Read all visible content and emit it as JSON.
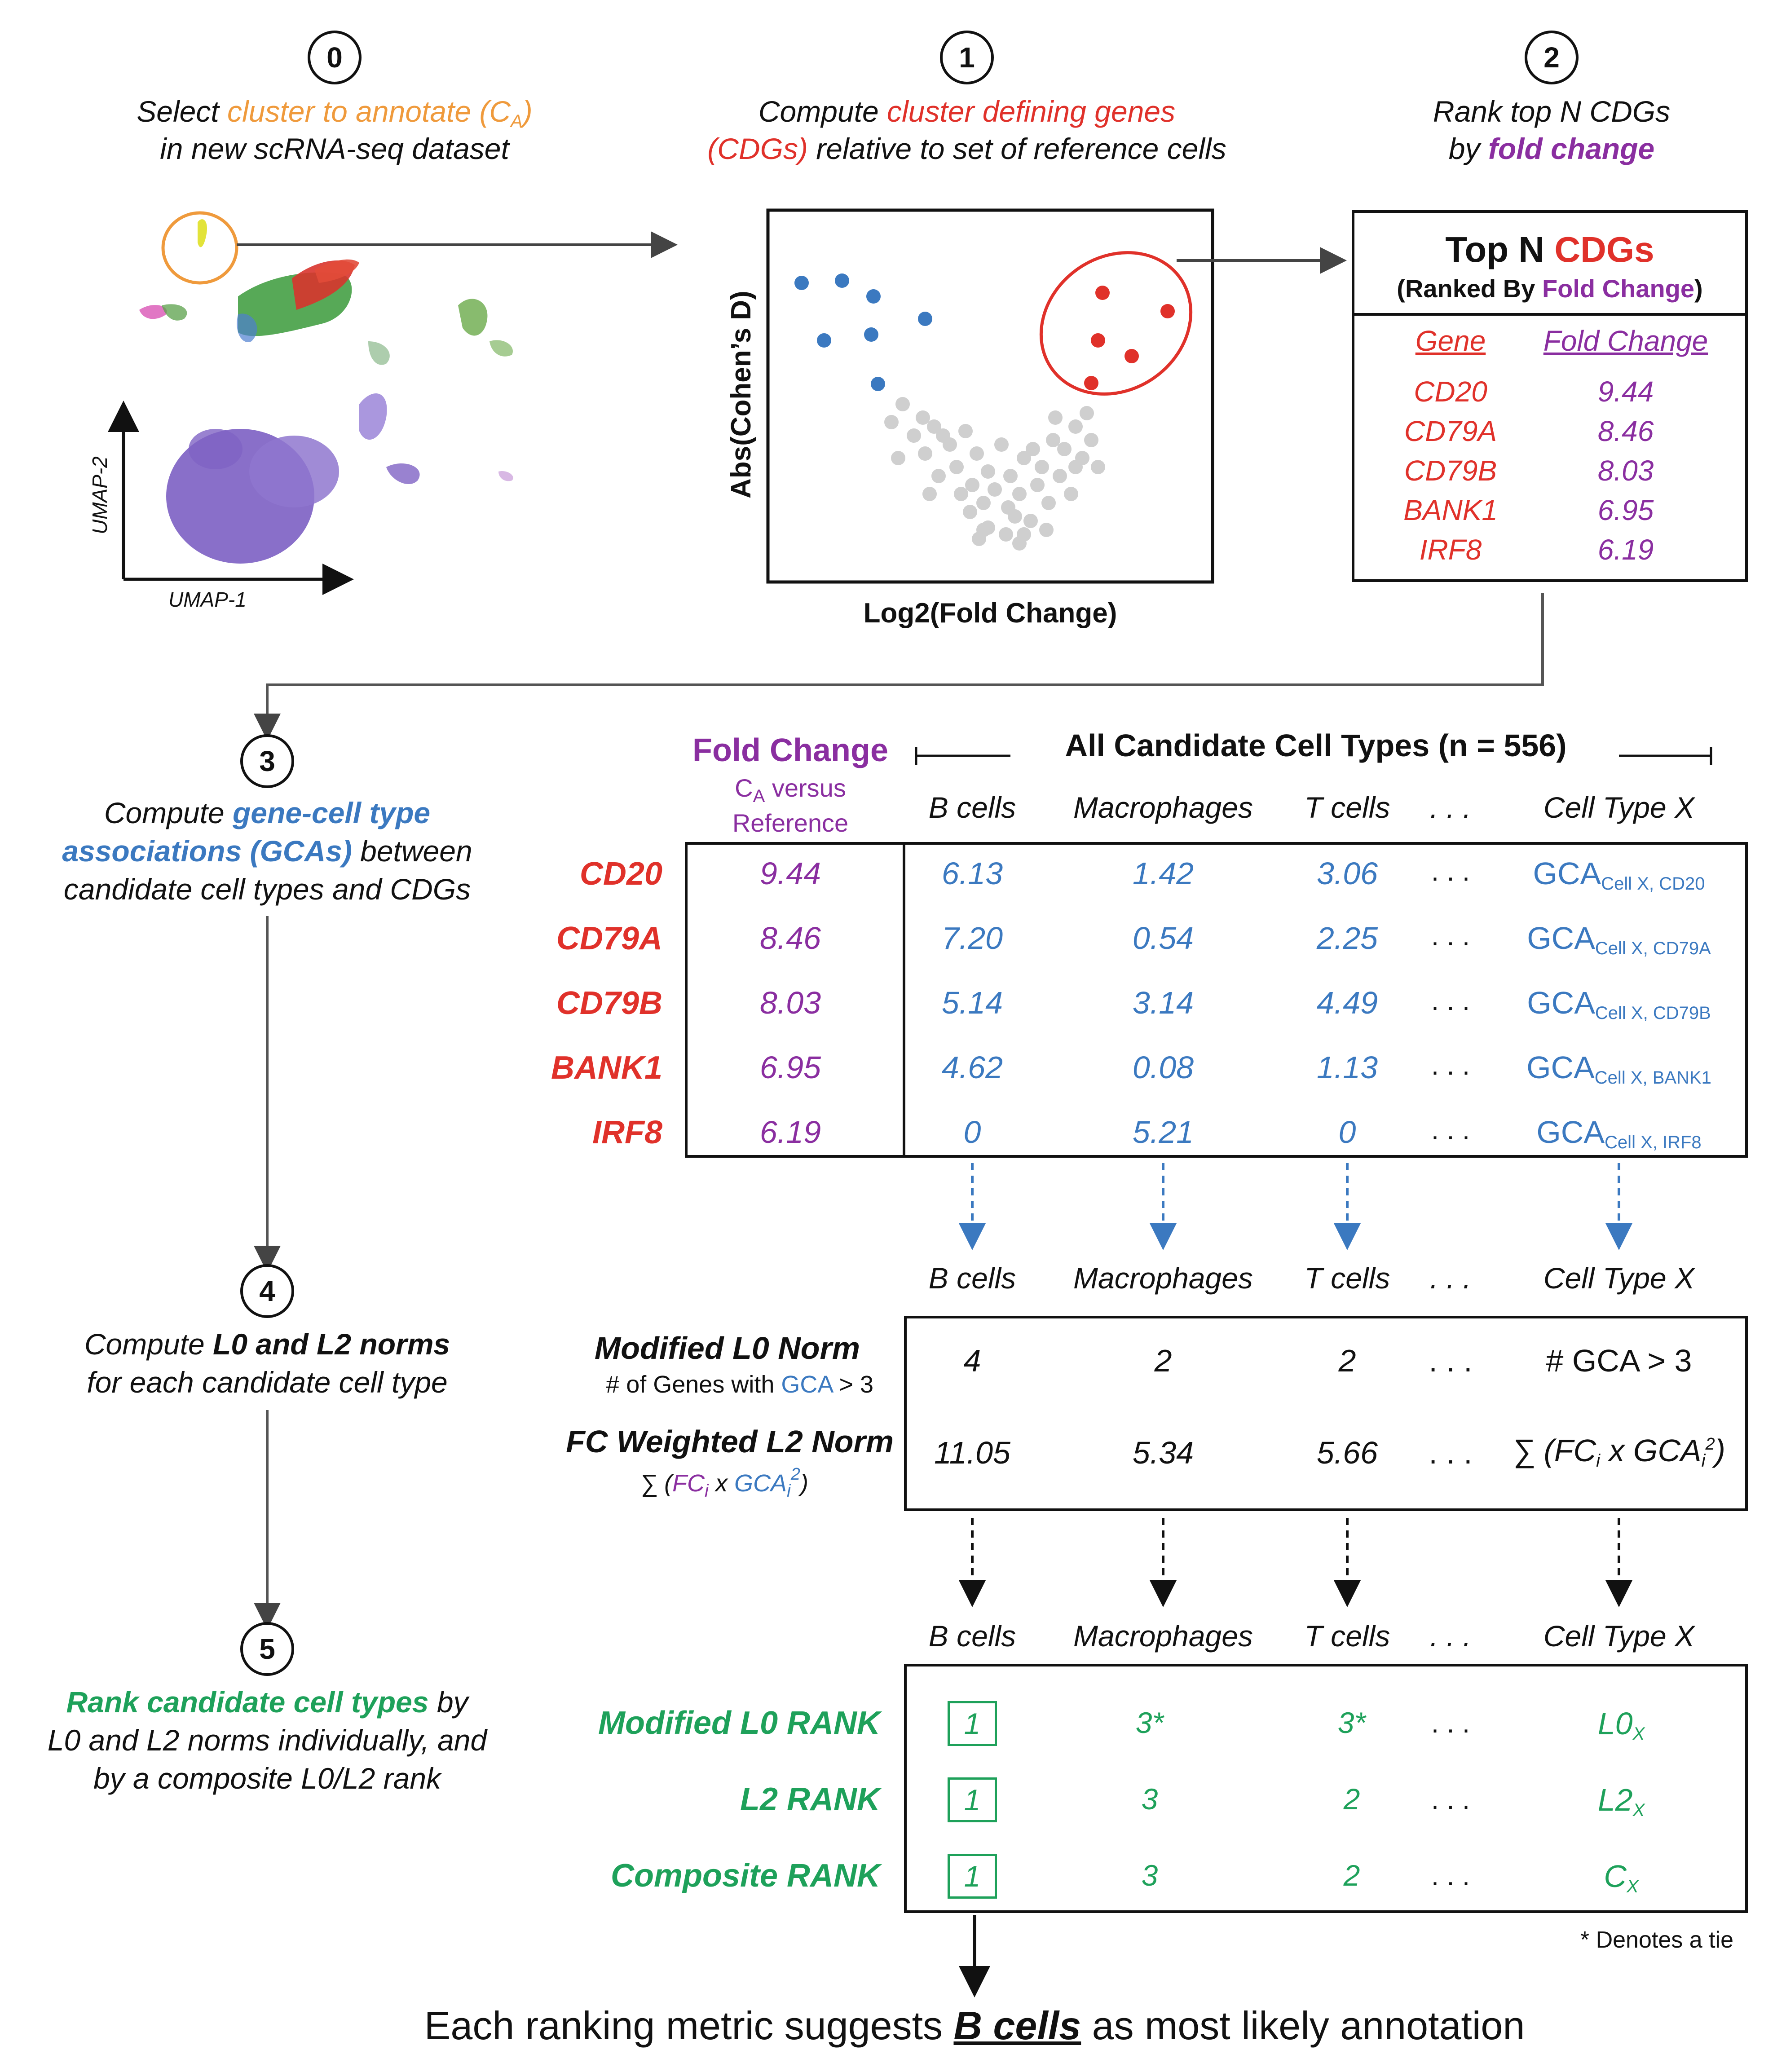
{
  "steps": {
    "s0": {
      "num": "0",
      "line1_pre": "Select ",
      "line1_hl": "cluster to annotate (C",
      "line1_sub": "A",
      "line1_hl_end": ")",
      "line2": "in new scRNA-seq dataset"
    },
    "s1": {
      "num": "1",
      "line1_pre": "Compute ",
      "line1_hl": "cluster defining genes",
      "line2_hl": "(CDGs)",
      "line2_post": " relative to set of reference cells"
    },
    "s2": {
      "num": "2",
      "line1": "Rank top N CDGs",
      "line2_pre": "by ",
      "line2_hl": "fold change"
    },
    "s3": {
      "num": "3",
      "line1_pre": "Compute ",
      "line1_hl": "gene-cell type",
      "line2_hl": "associations (GCAs)",
      "line2_post": " between",
      "line3": "candidate cell types and CDGs"
    },
    "s4": {
      "num": "4",
      "line1_pre": "Compute ",
      "line1_hl": "L0 and L2 norms",
      "line2": "for each candidate cell type"
    },
    "s5": {
      "num": "5",
      "line1_hl": "Rank candidate cell types",
      "line1_post": " by",
      "line2": "L0 and L2 norms individually, and",
      "line3": "by a composite L0/L2 rank"
    }
  },
  "umap": {
    "xlabel": "UMAP-1",
    "ylabel": "UMAP-2"
  },
  "volcano": {
    "xlabel": "Log2(Fold Change)",
    "ylabel": "Abs(Cohen’s D)"
  },
  "topn": {
    "title_pre": "Top N ",
    "title_hl": "CDGs",
    "subtitle_pre": "(Ranked By ",
    "subtitle_hl": "Fold Change",
    "subtitle_post": ")",
    "col_gene": "Gene",
    "col_fc": "Fold Change",
    "rows": [
      {
        "gene": "CD20",
        "fc": "9.44"
      },
      {
        "gene": "CD79A",
        "fc": "8.46"
      },
      {
        "gene": "CD79B",
        "fc": "8.03"
      },
      {
        "gene": "BANK1",
        "fc": "6.95"
      },
      {
        "gene": "IRF8",
        "fc": "6.19"
      }
    ]
  },
  "gca": {
    "fc_header": "Fold Change",
    "fc_sub_c": "C",
    "fc_sub_a": "A",
    "fc_sub_rest": " versus",
    "fc_sub2": "Reference",
    "all_header": "All Candidate Cell Types (n = 556)",
    "cols": [
      "B cells",
      "Macrophages",
      "T cells",
      ". . .",
      "Cell Type X"
    ],
    "rows": [
      {
        "gene": "CD20",
        "fc": "9.44",
        "b": "6.13",
        "m": "1.42",
        "t": "3.06",
        "dots": ". . .",
        "x": "GCA",
        "xsub": "Cell X, CD20"
      },
      {
        "gene": "CD79A",
        "fc": "8.46",
        "b": "7.20",
        "m": "0.54",
        "t": "2.25",
        "dots": ". . .",
        "x": "GCA",
        "xsub": "Cell X, CD79A"
      },
      {
        "gene": "CD79B",
        "fc": "8.03",
        "b": "5.14",
        "m": "3.14",
        "t": "4.49",
        "dots": ". . .",
        "x": "GCA",
        "xsub": "Cell X, CD79B"
      },
      {
        "gene": "BANK1",
        "fc": "6.95",
        "b": "4.62",
        "m": "0.08",
        "t": "1.13",
        "dots": ". . .",
        "x": "GCA",
        "xsub": "Cell X, BANK1"
      },
      {
        "gene": "IRF8",
        "fc": "6.19",
        "b": "0",
        "m": "5.21",
        "t": "0",
        "dots": ". . .",
        "x": "GCA",
        "xsub": "Cell X, IRF8"
      }
    ]
  },
  "norms": {
    "cols": [
      "B cells",
      "Macrophages",
      "T cells",
      ". . .",
      "Cell Type X"
    ],
    "l0_label": "Modified L0 Norm",
    "l0_desc_pre": "# of Genes with ",
    "l0_desc_hl": "GCA",
    "l0_desc_post": " > 3",
    "l2_label": "FC Weighted L2 Norm",
    "l2_desc_pre": "∑ (",
    "l2_desc_fc": "FC",
    "l2_desc_i": "i",
    "l2_desc_x": " x ",
    "l2_desc_gca": "GCA",
    "l2_desc_i2": "i",
    "l2_desc_2": "2",
    "l2_desc_post": ")",
    "l0_vals": [
      "4",
      "2",
      "2",
      ". . .",
      "# GCA > 3"
    ],
    "l2_vals": [
      "11.05",
      "5.34",
      "5.66",
      ". . ."
    ],
    "l2_x": {
      "pre": "∑ (FC",
      "i": "i",
      "mid": " x GCA",
      "i2": "i",
      "sq": "2",
      "post": ")"
    }
  },
  "ranks": {
    "cols": [
      "B cells",
      "Macrophages",
      "T cells",
      ". . .",
      "Cell Type X"
    ],
    "rows": [
      {
        "label": "Modified L0 RANK",
        "b": "1",
        "m": "3*",
        "t": "3*",
        "dots": ". . .",
        "x": "L0",
        "xs": "X"
      },
      {
        "label": "L2 RANK",
        "b": "1",
        "m": "3",
        "t": "2",
        "dots": ". . .",
        "x": "L2",
        "xs": "X"
      },
      {
        "label": "Composite RANK",
        "b": "1",
        "m": "3",
        "t": "2",
        "dots": ". . .",
        "x": "C",
        "xs": "X"
      }
    ],
    "tie_note": "* Denotes a tie"
  },
  "conclusion": {
    "pre": "Each ranking metric suggests ",
    "hl": "B cells",
    "post": " as most likely annotation"
  },
  "colors": {
    "orange": "#ef9a3c",
    "red": "#e0312a",
    "purple": "#8a2ea0",
    "blue": "#3b79c0",
    "green": "#1ea15a",
    "gray": "#cfcfcf",
    "umap_purple": "#7f63c4"
  }
}
